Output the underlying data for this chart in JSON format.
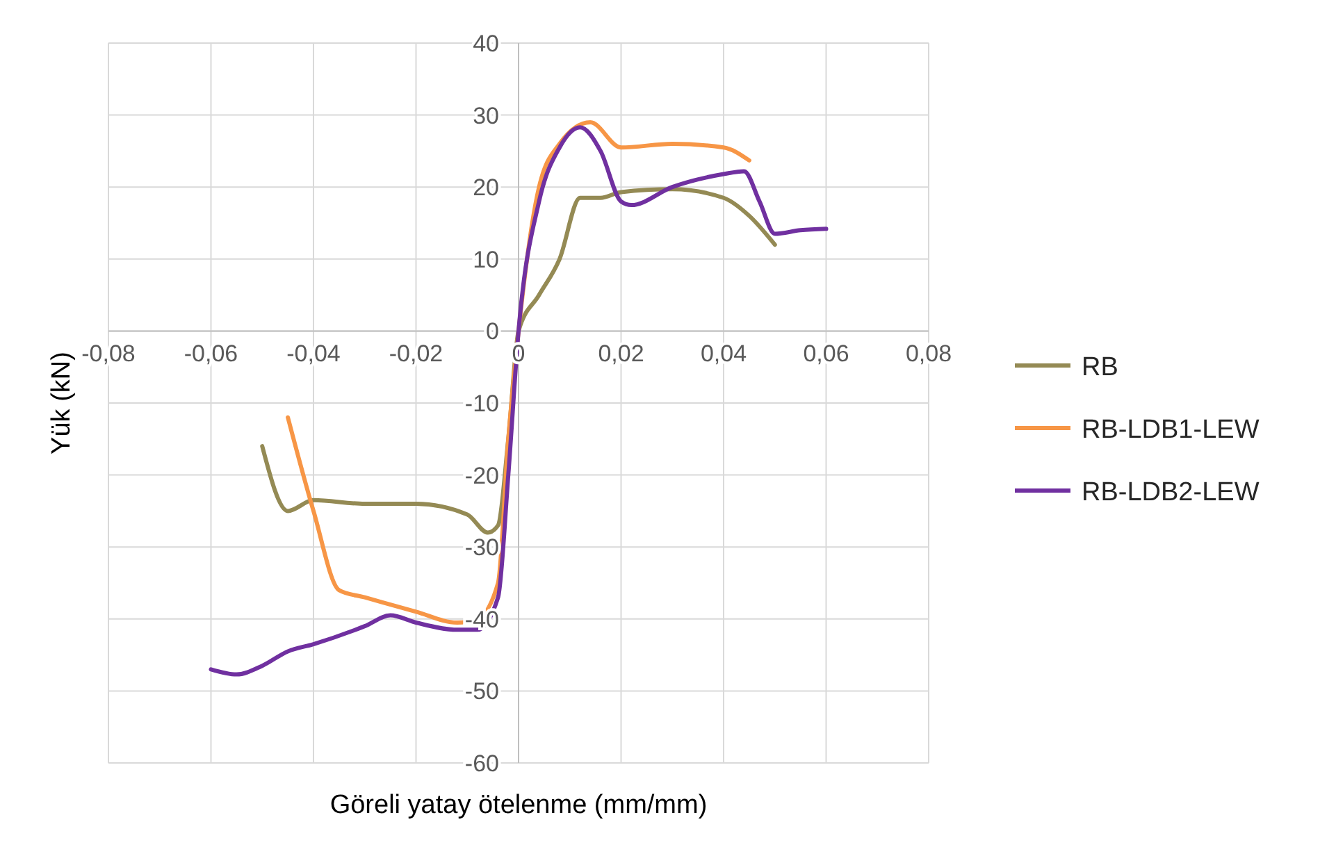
{
  "chart_data": {
    "type": "line",
    "xlabel": "Göreli yatay ötelenme (mm/mm)",
    "ylabel": "Yük (kN)",
    "xlim": [
      -0.08,
      0.08
    ],
    "xticks": [
      {
        "value": -0.08,
        "label": "-0,08"
      },
      {
        "value": -0.06,
        "label": "-0,06"
      },
      {
        "value": -0.04,
        "label": "-0,04"
      },
      {
        "value": -0.02,
        "label": "-0,02"
      },
      {
        "value": 0,
        "label": "0"
      },
      {
        "value": 0.02,
        "label": "0,02"
      },
      {
        "value": 0.04,
        "label": "0,04"
      },
      {
        "value": 0.06,
        "label": "0,06"
      },
      {
        "value": 0.08,
        "label": "0,08"
      }
    ],
    "ylim": [
      -60,
      40
    ],
    "yticks": [
      -60,
      -50,
      -40,
      -30,
      -20,
      -10,
      0,
      10,
      20,
      30,
      40
    ],
    "grid": true,
    "legend": "right",
    "series": [
      {
        "name": "RB",
        "color": "#948a54",
        "x": [
          -0.05,
          -0.045,
          -0.04,
          -0.03,
          -0.02,
          -0.01,
          -0.006,
          -0.004,
          -0.002,
          0,
          0.004,
          0.008,
          0.012,
          0.016,
          0.02,
          0.03,
          0.04,
          0.045,
          0.05
        ],
        "values": [
          -16,
          -25,
          -23.5,
          -24,
          -24,
          -25.5,
          -28,
          -27,
          -15,
          0,
          5,
          10,
          18.5,
          18.5,
          19.3,
          19.7,
          18.5,
          16,
          12
        ]
      },
      {
        "name": "RB-LDB1-LEW",
        "color": "#f79646",
        "x": [
          -0.045,
          -0.04,
          -0.035,
          -0.03,
          -0.02,
          -0.012,
          -0.008,
          -0.004,
          -0.002,
          0,
          0.004,
          0.008,
          0.014,
          0.02,
          0.03,
          0.04,
          0.045
        ],
        "values": [
          -12,
          -25,
          -36,
          -37,
          -39,
          -40.5,
          -40,
          -35,
          -15,
          0,
          20,
          26,
          29,
          25.5,
          26,
          25.5,
          23.7
        ]
      },
      {
        "name": "RB-LDB2-LEW",
        "color": "#7030a0",
        "x": [
          -0.06,
          -0.055,
          -0.05,
          -0.045,
          -0.04,
          -0.03,
          -0.025,
          -0.02,
          -0.012,
          -0.008,
          -0.004,
          -0.002,
          0,
          0.004,
          0.008,
          0.012,
          0.016,
          0.02,
          0.022,
          0.03,
          0.04,
          0.044,
          0.047,
          0.05,
          0.055,
          0.06
        ],
        "values": [
          -47,
          -47.7,
          -46.5,
          -44.5,
          -43.5,
          -41,
          -39.5,
          -40.5,
          -41.5,
          -41.5,
          -37,
          -20,
          0,
          18,
          25.5,
          28.3,
          25,
          18,
          17.5,
          20,
          21.8,
          22.2,
          18,
          13.5,
          14,
          14.2
        ]
      }
    ]
  }
}
